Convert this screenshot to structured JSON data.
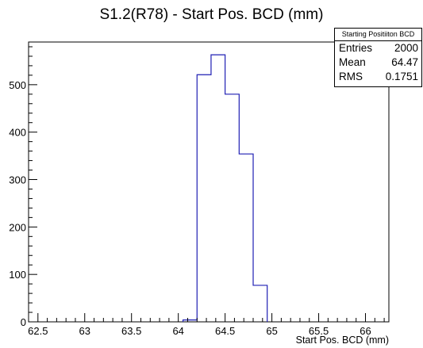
{
  "chart_data": {
    "type": "histogram",
    "title": "S1.2(R78) - Start Pos. BCD (mm)",
    "xlabel": "Start Pos. BCD (mm)",
    "ylabel": "",
    "xlim": [
      62.4,
      66.25
    ],
    "ylim": [
      0,
      590
    ],
    "x_ticks": [
      "62.5",
      "63",
      "63.5",
      "64",
      "64.5",
      "65",
      "65.5",
      "66"
    ],
    "y_ticks": [
      "0",
      "100",
      "200",
      "300",
      "400",
      "500"
    ],
    "bins": [
      {
        "x0": 64.05,
        "x1": 64.2,
        "value": 4
      },
      {
        "x0": 64.2,
        "x1": 64.35,
        "value": 521
      },
      {
        "x0": 64.35,
        "x1": 64.5,
        "value": 563
      },
      {
        "x0": 64.5,
        "x1": 64.65,
        "value": 480
      },
      {
        "x0": 64.65,
        "x1": 64.8,
        "value": 354
      },
      {
        "x0": 64.8,
        "x1": 64.95,
        "value": 77
      }
    ],
    "line_color": "#1f1fb4",
    "legend": "top-right",
    "stats": {
      "header": "Starting Positiiton BCD",
      "rows": [
        {
          "label": "Entries",
          "value": "2000"
        },
        {
          "label": "Mean",
          "value": "64.47"
        },
        {
          "label": "RMS",
          "value": "0.1751"
        }
      ]
    }
  }
}
